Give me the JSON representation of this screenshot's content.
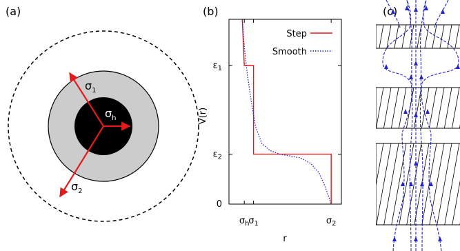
{
  "panels": {
    "a": {
      "label": "(a)"
    },
    "b": {
      "label": "(b)"
    },
    "c": {
      "label": "(c)"
    }
  },
  "panel_a": {
    "arrows": [
      {
        "sym": "σ",
        "sub": "1"
      },
      {
        "sym": "σ",
        "sub": "h"
      },
      {
        "sym": "σ",
        "sub": "2"
      }
    ]
  },
  "chart_data": {
    "type": "line",
    "ylabel": "V(r)",
    "xlabel": "r",
    "xticks": [
      {
        "sym": "σ",
        "sub": "h",
        "x": 0.15
      },
      {
        "sym": "σ",
        "sub": "1",
        "x": 0.24
      },
      {
        "sym": "σ",
        "sub": "2",
        "x": 1.0
      }
    ],
    "yticks": [
      {
        "sym": "ε",
        "sub": "1",
        "y": 0.75
      },
      {
        "sym": "ε",
        "sub": "2",
        "y": 0.27
      },
      {
        "text": "0",
        "y": 0.0
      }
    ],
    "xlim": [
      0,
      1.1
    ],
    "ylim": [
      0,
      1.0
    ],
    "legend_position": "top-right",
    "series": [
      {
        "name": "Step",
        "color": "#e41a1c",
        "style": "solid",
        "x": [
          0.13,
          0.15,
          0.15,
          0.24,
          0.24,
          1.0,
          1.0
        ],
        "y": [
          1.0,
          0.75,
          0.75,
          0.75,
          0.27,
          0.27,
          0.0
        ]
      },
      {
        "name": "Smooth",
        "color": "#2222cc",
        "style": "dotted",
        "x": [
          0.13,
          0.15,
          0.18,
          0.22,
          0.26,
          0.32,
          0.4,
          0.5,
          0.6,
          0.7,
          0.8,
          0.88,
          0.93,
          0.97,
          1.0
        ],
        "y": [
          1.0,
          0.85,
          0.7,
          0.55,
          0.42,
          0.33,
          0.29,
          0.27,
          0.26,
          0.25,
          0.22,
          0.17,
          0.11,
          0.05,
          0.0
        ]
      }
    ]
  }
}
